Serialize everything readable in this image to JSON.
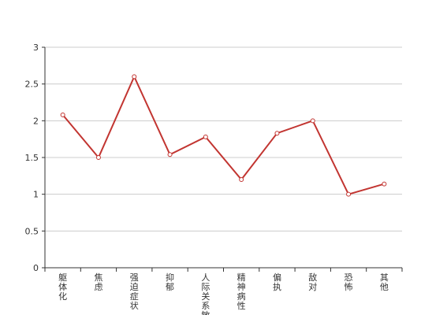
{
  "chart_data": {
    "type": "line",
    "categories": [
      "躯体化",
      "焦虑",
      "强迫症状",
      "抑郁",
      "人际关系敏感",
      "精神病性",
      "偏执",
      "敌对",
      "恐怖",
      "其他"
    ],
    "series": [
      {
        "color": "#c23531",
        "values": [
          2.08,
          1.5,
          2.6,
          1.54,
          1.78,
          1.2,
          1.83,
          2.0,
          1.0,
          1.14
        ]
      }
    ],
    "ylim": [
      0,
      3
    ],
    "yticks": [
      0,
      0.5,
      1,
      1.5,
      2,
      2.5,
      3
    ],
    "grid": true
  }
}
